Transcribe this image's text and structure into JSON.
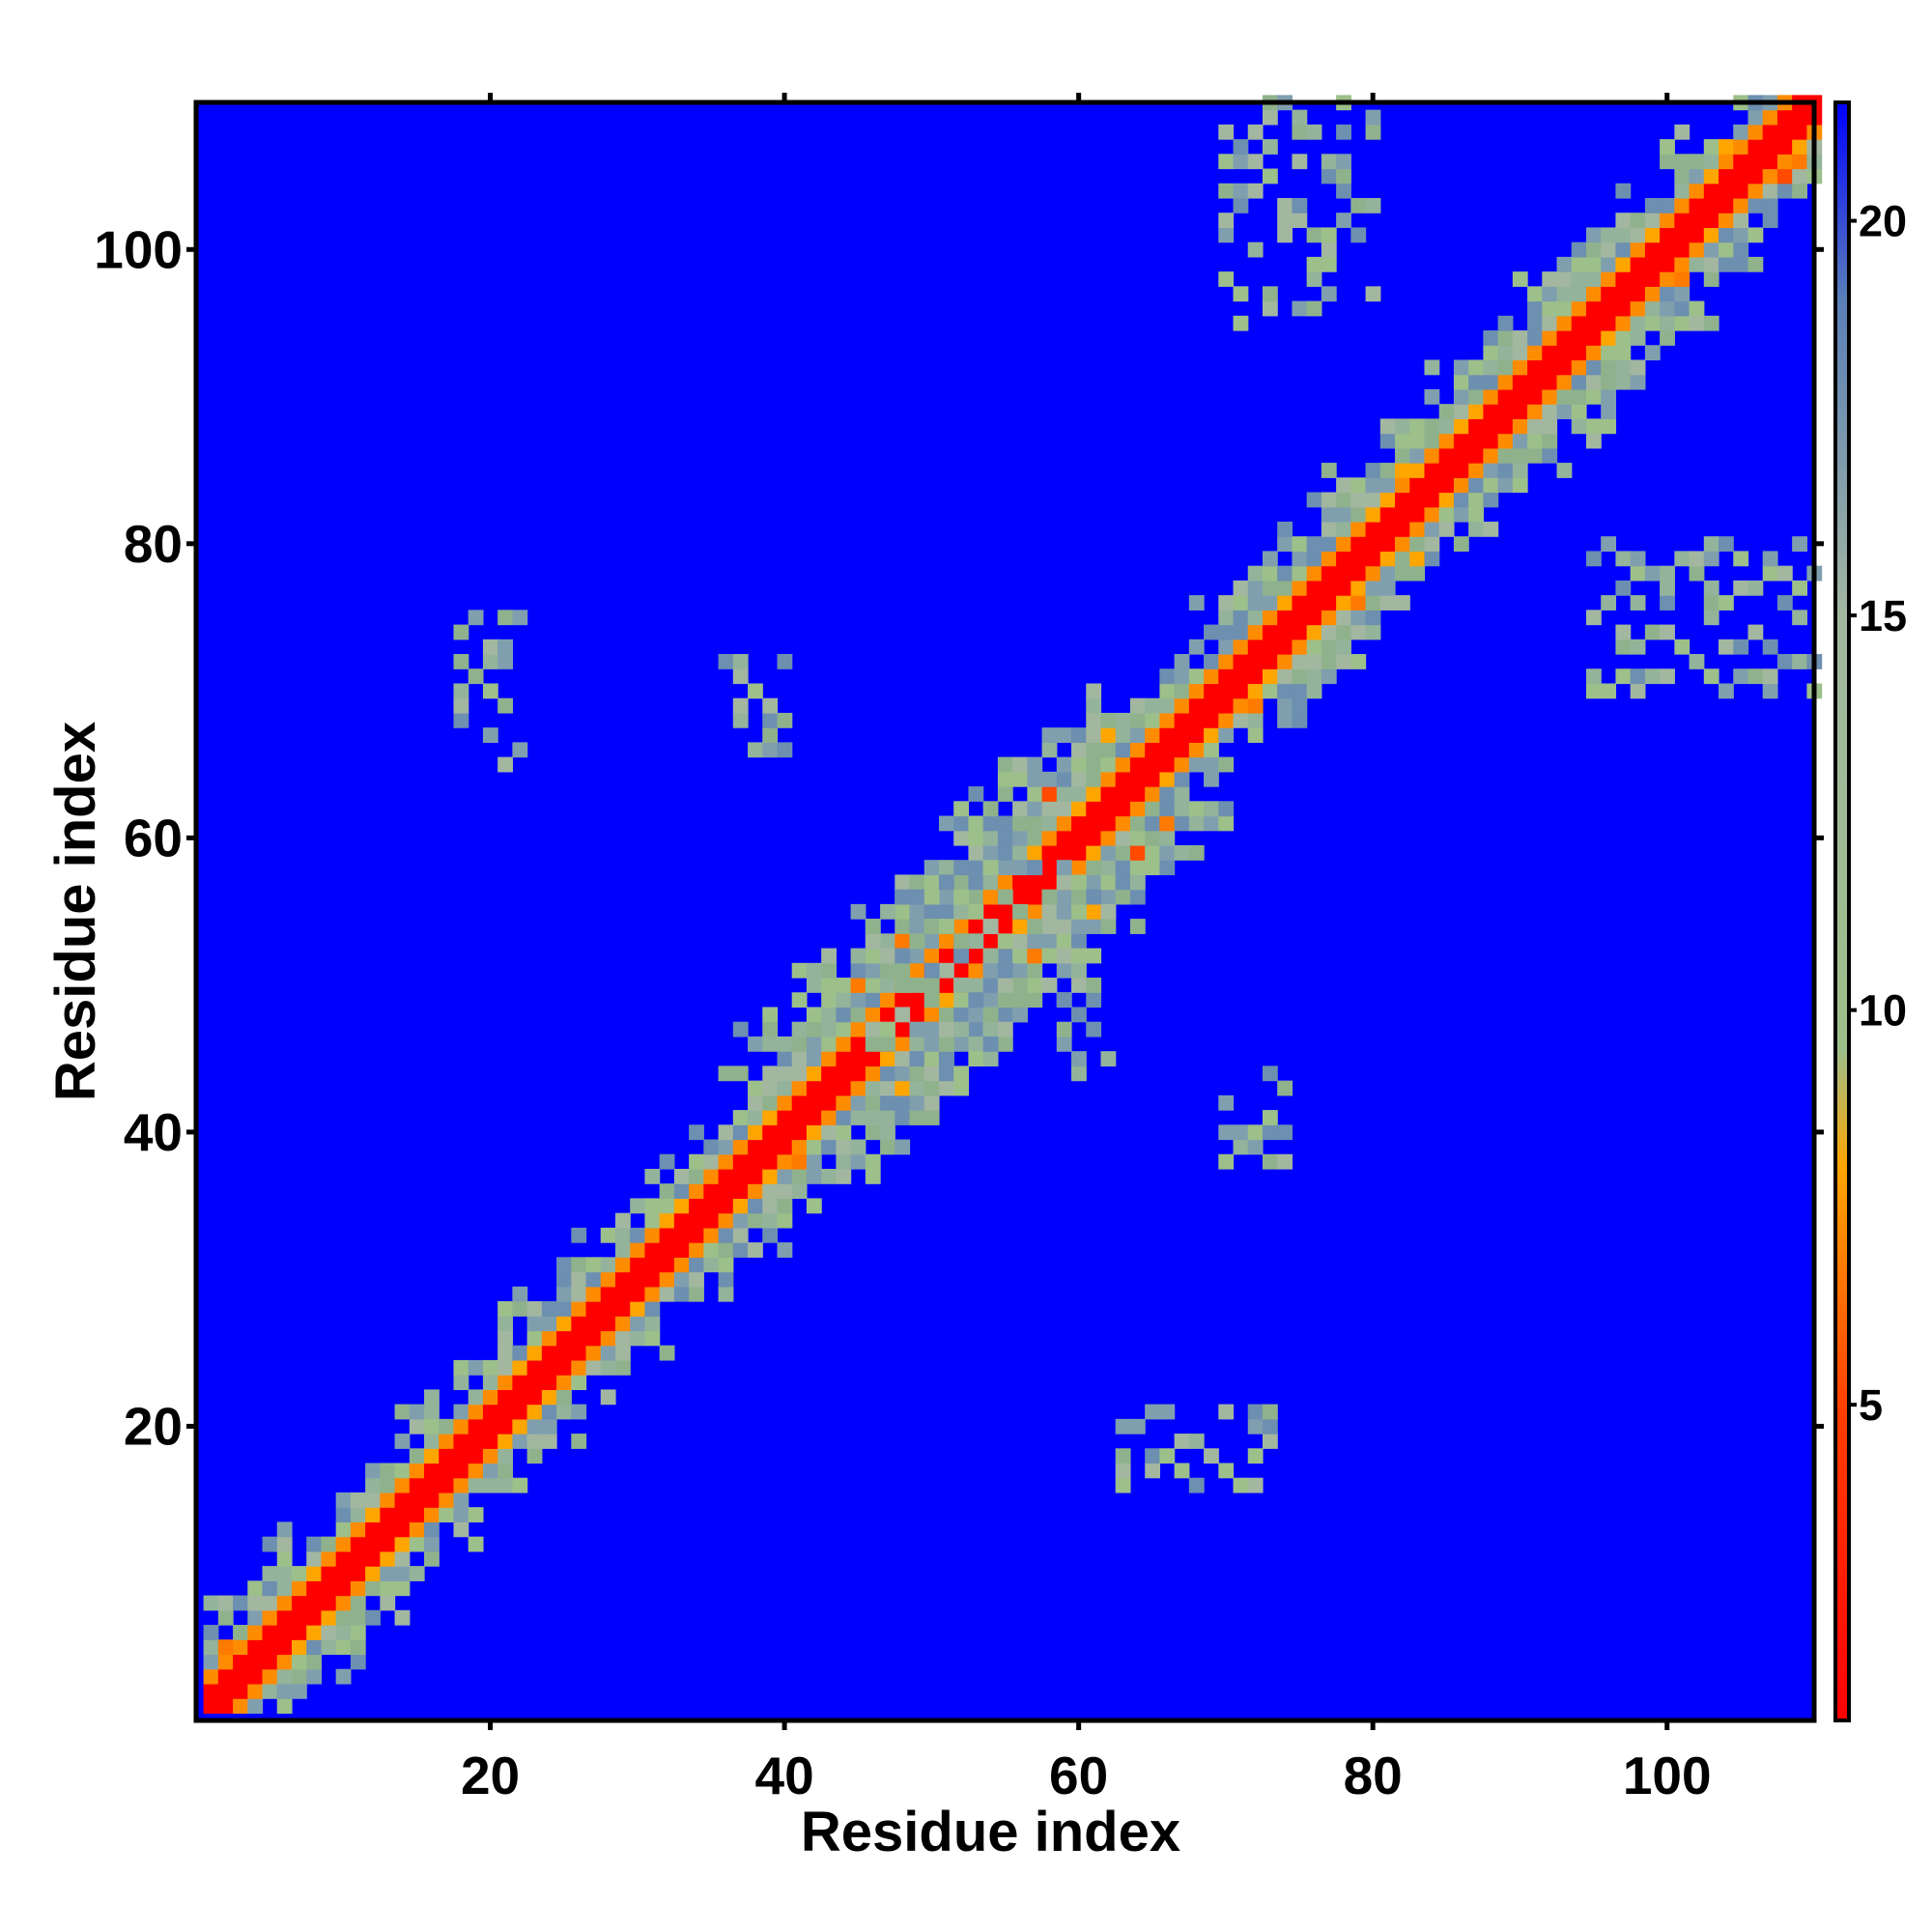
{
  "chart_data": {
    "type": "heatmap",
    "title": "",
    "xlabel": "Residue index",
    "ylabel": "Residue index",
    "xlim": [
      1,
      110
    ],
    "ylim": [
      1,
      110
    ],
    "x_ticks": [
      20,
      40,
      60,
      80,
      100
    ],
    "y_ticks": [
      20,
      40,
      60,
      80,
      100
    ],
    "n_residues": 110,
    "colorbar": {
      "ticks": [
        5,
        10,
        15,
        20
      ],
      "range": [
        1,
        21.5
      ],
      "colors": [
        {
          "stop": 1,
          "color": "#ff0000"
        },
        {
          "stop": 5,
          "color": "#ff4000"
        },
        {
          "stop": 8,
          "color": "#ffa500"
        },
        {
          "stop": 9.5,
          "color": "#9dbf8a"
        },
        {
          "stop": 15,
          "color": "#a3b6a0"
        },
        {
          "stop": 19,
          "color": "#5a7fb8"
        },
        {
          "stop": 21.5,
          "color": "#0000ff"
        }
      ]
    },
    "background_color": "#0000ff",
    "diagonal_band": {
      "core_halfwidth": 1,
      "orange_halfwidth": 2,
      "green_halfwidth_by_segment": [
        {
          "from": 1,
          "to": 10,
          "halfwidth": 5
        },
        {
          "from": 10,
          "to": 35,
          "halfwidth": 5
        },
        {
          "from": 35,
          "to": 45,
          "halfwidth": 6
        },
        {
          "from": 45,
          "to": 62,
          "halfwidth": 8
        },
        {
          "from": 62,
          "to": 75,
          "halfwidth": 5
        },
        {
          "from": 75,
          "to": 95,
          "halfwidth": 6
        },
        {
          "from": 95,
          "to": 110,
          "halfwidth": 5
        }
      ]
    },
    "contact_patches": [
      {
        "x": [
          70,
          80
        ],
        "y": [
          95,
          110
        ],
        "value": 12
      },
      {
        "x": [
          95,
          110
        ],
        "y": [
          70,
          80
        ],
        "value": 12
      },
      {
        "x": [
          46,
          56
        ],
        "y": [
          45,
          56
        ],
        "value": 11
      },
      {
        "x": [
          50,
          62
        ],
        "y": [
          44,
          58
        ],
        "value": 11
      },
      {
        "x": [
          18,
          22
        ],
        "y": [
          65,
          75
        ],
        "value": 12
      },
      {
        "x": [
          36,
          40
        ],
        "y": [
          66,
          73
        ],
        "value": 12
      },
      {
        "x": [
          63,
          70
        ],
        "y": [
          16,
          21
        ],
        "value": 12
      },
      {
        "x": [
          70,
          74
        ],
        "y": [
          38,
          44
        ],
        "value": 12
      },
      {
        "x": [
          71,
          74
        ],
        "y": [
          16,
          21
        ],
        "value": 12
      }
    ]
  }
}
